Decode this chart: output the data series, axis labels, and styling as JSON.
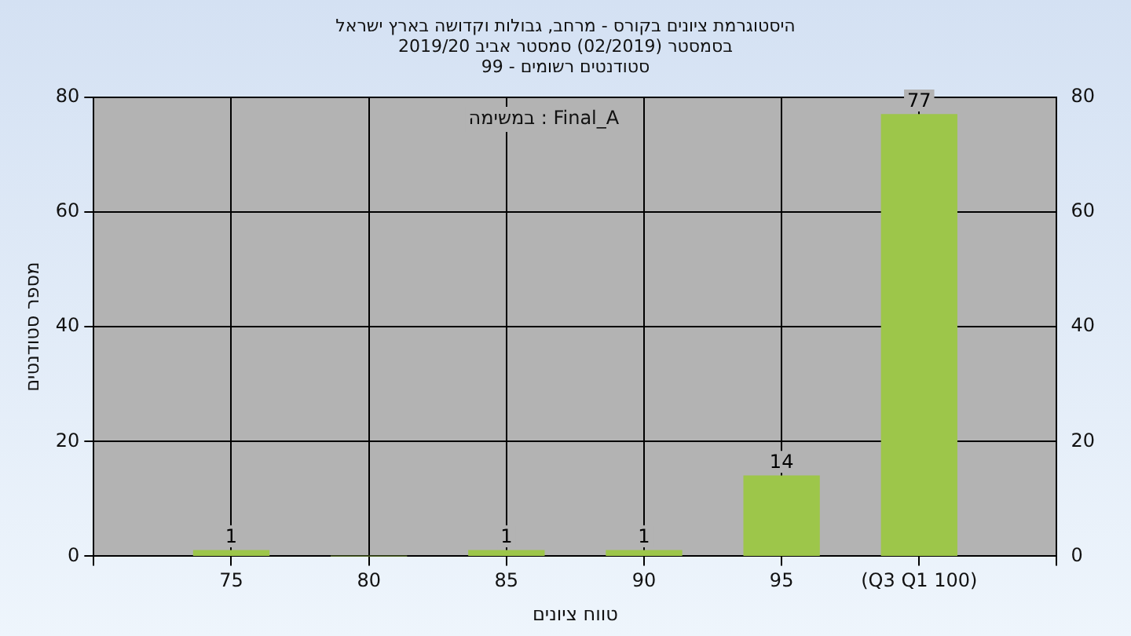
{
  "chart_data": {
    "type": "bar",
    "title": "היסטוגרמת ציונים בקורס - מרחב, גבולות וקדושה בארץ ישראל",
    "subtitle": "בסמסטר  (02/2019)  סמסטר אביב 2019/20\nסטודנטים רשומים - 99",
    "xlabel": "טווח ציונים",
    "ylabel": "מספר סטודנטים",
    "annotations": [
      "במשימה : Final_A"
    ],
    "categories": [
      null,
      "75",
      "80",
      "85",
      "90",
      "95",
      "(Q3 Q1 100)",
      null
    ],
    "values": [
      null,
      1,
      0,
      1,
      1,
      14,
      77,
      null
    ],
    "value_labels": [
      null,
      "1",
      null,
      "1",
      "1",
      "14",
      "77",
      null
    ],
    "color": "#9dc64a",
    "ylim": [
      0,
      80
    ],
    "yticks": [
      0,
      20,
      40,
      60,
      80
    ],
    "y2lim": [
      0,
      80
    ],
    "y2ticks": [
      0,
      20,
      40,
      60,
      80
    ],
    "grid": true
  }
}
